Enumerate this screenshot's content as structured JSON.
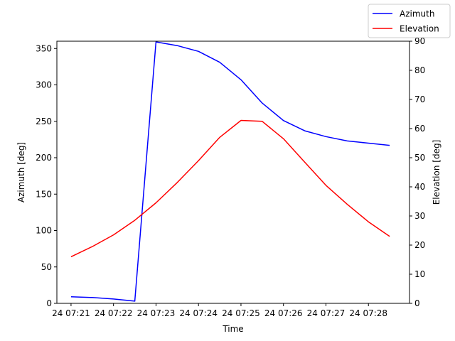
{
  "chart_data": {
    "type": "line",
    "title": "",
    "xlabel": "Time",
    "ylabel": "Azimuth [deg]",
    "y2label": "Elevation [deg]",
    "ylim": [
      0,
      360
    ],
    "y2lim": [
      0,
      90
    ],
    "grid": false,
    "legend_placement": "top-right",
    "x_ticks": [
      "24 07:21",
      "24 07:22",
      "24 07:23",
      "24 07:24",
      "24 07:25",
      "24 07:26",
      "24 07:27",
      "24 07:28"
    ],
    "x": [
      "07:21:00",
      "07:21:30",
      "07:22:00",
      "07:22:30",
      "07:23:00",
      "07:23:30",
      "07:24:00",
      "07:24:30",
      "07:25:00",
      "07:25:30",
      "07:26:00",
      "07:26:30",
      "07:27:00",
      "07:27:30",
      "07:28:00",
      "07:28:30"
    ],
    "y_ticks": [
      0,
      50,
      100,
      150,
      200,
      250,
      300,
      350
    ],
    "y2_ticks": [
      0,
      10,
      20,
      30,
      40,
      50,
      60,
      70,
      80,
      90
    ],
    "series": [
      {
        "name": "Azimuth",
        "axis": "left",
        "color": "#0000ff",
        "values": [
          9,
          8,
          6,
          3,
          359,
          354,
          346,
          331,
          307,
          275,
          251,
          237,
          229,
          223,
          220,
          217
        ]
      },
      {
        "name": "Elevation",
        "axis": "right",
        "color": "#ff0000",
        "values": [
          16,
          19.5,
          23.5,
          28.5,
          34.5,
          41.5,
          49,
          57,
          62.8,
          62.5,
          56.5,
          48.5,
          40.5,
          34,
          28,
          23
        ]
      }
    ]
  }
}
